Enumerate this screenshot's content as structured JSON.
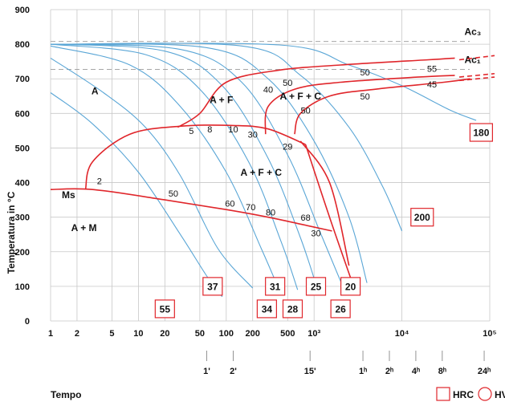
{
  "chart_data": {
    "type": "line",
    "title": "",
    "xlabel": "Tempo",
    "ylabel": "Temperatura in °C",
    "xscale": "log",
    "xlim": [
      1,
      100000
    ],
    "ylim": [
      0,
      900
    ],
    "grid": true,
    "y_ticks": [
      "0",
      "100",
      "200",
      "300",
      "400",
      "500",
      "600",
      "700",
      "800",
      "900"
    ],
    "x_ticks": [
      {
        "v": 1,
        "t": "1"
      },
      {
        "v": 2,
        "t": "2"
      },
      {
        "v": 5,
        "t": "5"
      },
      {
        "v": 10,
        "t": "10"
      },
      {
        "v": 20,
        "t": "20"
      },
      {
        "v": 50,
        "t": "50"
      },
      {
        "v": 100,
        "t": "100"
      },
      {
        "v": 200,
        "t": "200"
      },
      {
        "v": 500,
        "t": "500"
      },
      {
        "v": 1000,
        "t": "10³"
      },
      {
        "v": 10000,
        "t": "10⁴"
      },
      {
        "v": 100000,
        "t": "10⁵"
      }
    ],
    "time_ticks": [
      {
        "v": 60,
        "t": "1'"
      },
      {
        "v": 120,
        "t": "2'"
      },
      {
        "v": 900,
        "t": "15'"
      },
      {
        "v": 3600,
        "t": "1ʰ"
      },
      {
        "v": 7200,
        "t": "2ʰ"
      },
      {
        "v": 14400,
        "t": "4ʰ"
      },
      {
        "v": 28800,
        "t": "8ʰ"
      },
      {
        "v": 86400,
        "t": "24ʰ"
      }
    ],
    "ref_lines": [
      {
        "y": 808,
        "label": "Ac₃"
      },
      {
        "y": 727,
        "label": "Ac₁"
      }
    ],
    "regions": [
      {
        "label": "A",
        "x": 3.2,
        "y": 655
      },
      {
        "label": "A + F",
        "x": 88,
        "y": 630
      },
      {
        "label": "A + F + C",
        "x": 700,
        "y": 640
      },
      {
        "label": "A + F + C",
        "x": 250,
        "y": 420
      },
      {
        "label": "A + M",
        "x": 2.4,
        "y": 260
      },
      {
        "label": "Ms",
        "x": 1.6,
        "y": 355
      }
    ],
    "ms_line": [
      [
        1,
        380
      ],
      [
        3,
        380
      ],
      [
        20,
        350
      ],
      [
        100,
        322
      ],
      [
        300,
        300
      ],
      [
        700,
        280
      ],
      [
        1600,
        260
      ]
    ],
    "transformation_curves": [
      [
        [
          28,
          560
        ],
        [
          50,
          600
        ],
        [
          100,
          690
        ],
        [
          400,
          725
        ],
        [
          2000,
          740
        ],
        [
          20000,
          755
        ],
        [
          40000,
          760
        ]
      ],
      [
        [
          280,
          540
        ],
        [
          300,
          620
        ],
        [
          600,
          670
        ],
        [
          2000,
          690
        ],
        [
          15000,
          705
        ],
        [
          40000,
          710
        ]
      ],
      [
        [
          600,
          540
        ],
        [
          700,
          600
        ],
        [
          1500,
          650
        ],
        [
          5000,
          670
        ],
        [
          30000,
          690
        ],
        [
          60000,
          700
        ]
      ],
      [
        [
          2.5,
          380
        ],
        [
          3,
          460
        ],
        [
          8,
          540
        ],
        [
          30,
          563
        ],
        [
          120,
          565
        ],
        [
          300,
          555
        ],
        [
          800,
          510
        ]
      ],
      [
        [
          800,
          510
        ],
        [
          1500,
          300
        ],
        [
          3000,
          80
        ]
      ],
      [
        [
          700,
          520
        ],
        [
          1500,
          400
        ],
        [
          2500,
          160
        ]
      ]
    ],
    "cooling_curves": [
      [
        [
          1,
          660
        ],
        [
          3,
          570
        ],
        [
          10,
          430
        ],
        [
          30,
          250
        ],
        [
          60,
          130
        ],
        [
          90,
          70
        ]
      ],
      [
        [
          1,
          760
        ],
        [
          4,
          660
        ],
        [
          12,
          560
        ],
        [
          30,
          420
        ],
        [
          80,
          210
        ],
        [
          200,
          95
        ]
      ],
      [
        [
          1,
          795
        ],
        [
          8,
          740
        ],
        [
          30,
          620
        ],
        [
          100,
          430
        ],
        [
          250,
          210
        ],
        [
          400,
          90
        ]
      ],
      [
        [
          1,
          800
        ],
        [
          12,
          770
        ],
        [
          50,
          670
        ],
        [
          180,
          460
        ],
        [
          420,
          230
        ],
        [
          650,
          90
        ]
      ],
      [
        [
          1,
          800
        ],
        [
          20,
          780
        ],
        [
          90,
          680
        ],
        [
          300,
          470
        ],
        [
          700,
          240
        ],
        [
          1100,
          90
        ]
      ],
      [
        [
          1,
          800
        ],
        [
          30,
          785
        ],
        [
          150,
          690
        ],
        [
          500,
          480
        ],
        [
          1200,
          250
        ],
        [
          2200,
          90
        ]
      ],
      [
        [
          1,
          800
        ],
        [
          60,
          790
        ],
        [
          300,
          700
        ],
        [
          1000,
          520
        ],
        [
          2500,
          300
        ],
        [
          4000,
          110
        ]
      ],
      [
        [
          1,
          800
        ],
        [
          150,
          795
        ],
        [
          700,
          710
        ],
        [
          2500,
          560
        ],
        [
          6000,
          390
        ],
        [
          10000,
          260
        ]
      ],
      [
        [
          1,
          800
        ],
        [
          400,
          798
        ],
        [
          2500,
          740
        ],
        [
          10000,
          680
        ],
        [
          35000,
          610
        ],
        [
          70000,
          580
        ]
      ]
    ],
    "hardness_labels": [
      {
        "t": "2",
        "x": 3.6,
        "y": 395
      },
      {
        "t": "50",
        "x": 25,
        "y": 360
      },
      {
        "t": "60",
        "x": 110,
        "y": 330
      },
      {
        "t": "70",
        "x": 190,
        "y": 320
      },
      {
        "t": "80",
        "x": 320,
        "y": 305
      },
      {
        "t": "68",
        "x": 800,
        "y": 290
      },
      {
        "t": "30",
        "x": 1050,
        "y": 245
      },
      {
        "t": "5",
        "x": 40,
        "y": 540
      },
      {
        "t": "8",
        "x": 65,
        "y": 545
      },
      {
        "t": "10",
        "x": 120,
        "y": 545
      },
      {
        "t": "30",
        "x": 200,
        "y": 530
      },
      {
        "t": "29",
        "x": 500,
        "y": 495
      },
      {
        "t": "40",
        "x": 300,
        "y": 660
      },
      {
        "t": "50",
        "x": 500,
        "y": 680
      },
      {
        "t": "50",
        "x": 800,
        "y": 600
      },
      {
        "t": "50",
        "x": 3800,
        "y": 710
      },
      {
        "t": "50",
        "x": 3800,
        "y": 640
      },
      {
        "t": "55",
        "x": 22000,
        "y": 720
      },
      {
        "t": "45",
        "x": 22000,
        "y": 675
      }
    ],
    "hardness_boxes": [
      {
        "t": "55",
        "x": 20,
        "y": 35
      },
      {
        "t": "37",
        "x": 70,
        "y": 100
      },
      {
        "t": "34",
        "x": 290,
        "y": 35
      },
      {
        "t": "31",
        "x": 360,
        "y": 100
      },
      {
        "t": "28",
        "x": 570,
        "y": 35
      },
      {
        "t": "25",
        "x": 1050,
        "y": 100
      },
      {
        "t": "26",
        "x": 2000,
        "y": 35
      },
      {
        "t": "20",
        "x": 2600,
        "y": 100
      },
      {
        "t": "200",
        "x": 17000,
        "y": 300
      },
      {
        "t": "180",
        "x": 80000,
        "y": 545
      }
    ],
    "legend": [
      {
        "shape": "square",
        "label": "HRC"
      },
      {
        "shape": "circle",
        "label": "HV"
      }
    ]
  }
}
